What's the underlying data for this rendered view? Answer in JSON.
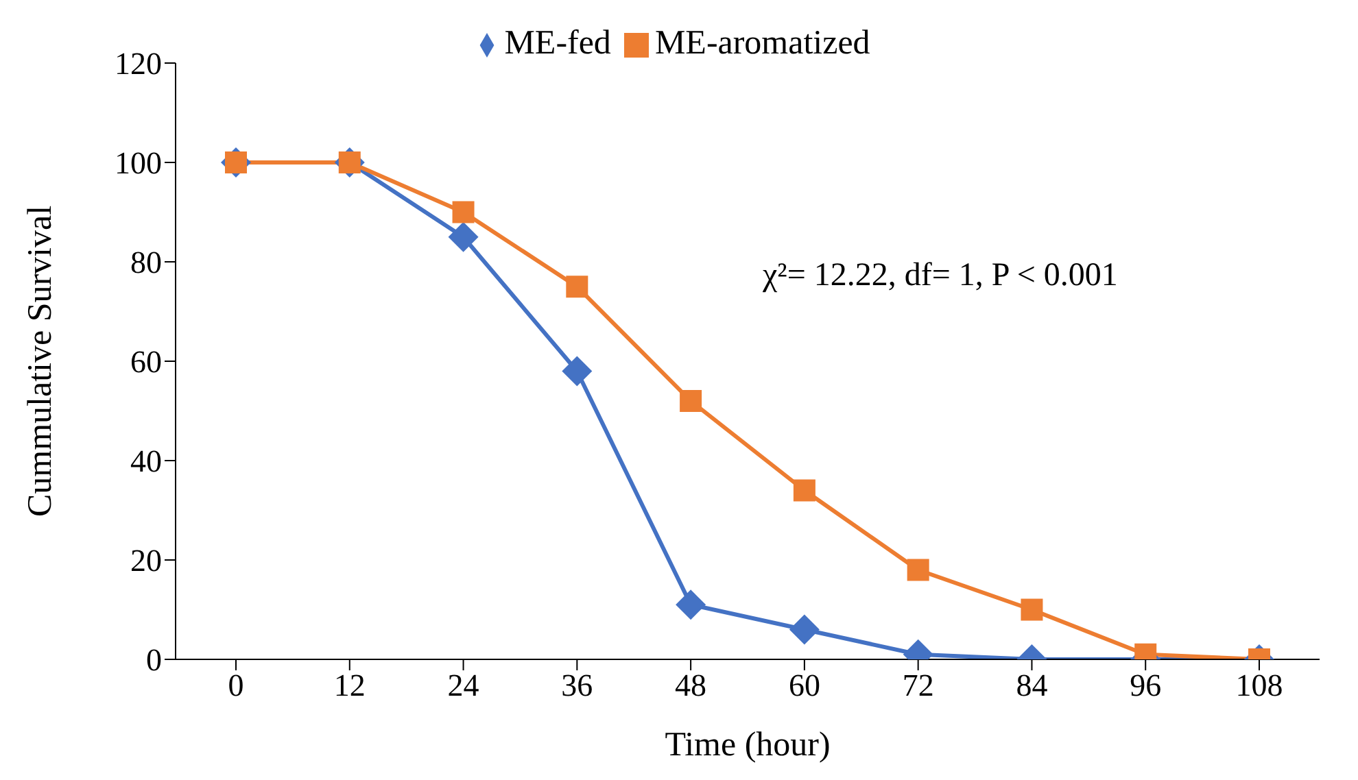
{
  "chart_data": {
    "type": "line",
    "xlabel": "Time (hour)",
    "ylabel": "Cummulative Survival",
    "categories": [
      "0",
      "12",
      "24",
      "36",
      "48",
      "60",
      "72",
      "84",
      "96",
      "108"
    ],
    "series": [
      {
        "name": "ME-fed",
        "color": "#4472c4",
        "marker": "diamond",
        "values": [
          100,
          100,
          85,
          58,
          11,
          6,
          1,
          0,
          0,
          0
        ]
      },
      {
        "name": "ME-aromatized",
        "color": "#ed7d31",
        "marker": "square",
        "values": [
          100,
          100,
          90,
          75,
          52,
          34,
          18,
          10,
          1,
          0
        ]
      }
    ],
    "ylim": [
      0,
      120
    ],
    "yticks": [
      0,
      20,
      40,
      60,
      80,
      100,
      120
    ],
    "grid": false,
    "legend": "top",
    "annotations": [
      "χ²= 12.22, df= 1, P < 0.001"
    ]
  }
}
